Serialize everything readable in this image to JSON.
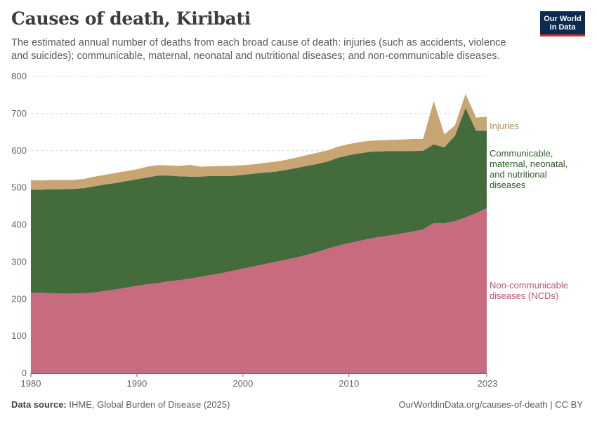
{
  "header": {
    "title": "Causes of death, Kiribati",
    "subtitle": "The estimated annual number of deaths from each broad cause of death: injuries (such as accidents, violence and suicides); communicable, maternal, neonatal and nutritional diseases; and non-communicable diseases.",
    "logo_line1": "Our World",
    "logo_line2": "in Data"
  },
  "footer": {
    "source_label": "Data source:",
    "source_text": "IHME, Global Burden of Disease (2025)",
    "url_text": "OurWorldinData.org/causes-of-death | CC BY"
  },
  "colors": {
    "ncd": "#c96b7e",
    "communicable": "#436b3c",
    "injuries": "#c9a574",
    "ncd_label": "#c0546b",
    "communicable_label": "#2f5c28",
    "injuries_label": "#b78d55",
    "grid": "#dddddd",
    "axis": "#666666"
  },
  "chart_data": {
    "type": "area",
    "stacked": true,
    "title": "Causes of death, Kiribati",
    "xlabel": "",
    "ylabel": "",
    "xlim": [
      1980,
      2023
    ],
    "ylim": [
      0,
      800
    ],
    "x_ticks": [
      "1980",
      "1990",
      "2000",
      "2010",
      "2023"
    ],
    "y_ticks": [
      "0",
      "100",
      "200",
      "300",
      "400",
      "500",
      "600",
      "700",
      "800"
    ],
    "x": [
      1980,
      1981,
      1982,
      1983,
      1984,
      1985,
      1986,
      1987,
      1988,
      1989,
      1990,
      1991,
      1992,
      1993,
      1994,
      1995,
      1996,
      1997,
      1998,
      1999,
      2000,
      2001,
      2002,
      2003,
      2004,
      2005,
      2006,
      2007,
      2008,
      2009,
      2010,
      2011,
      2012,
      2013,
      2014,
      2015,
      2016,
      2017,
      2018,
      2019,
      2020,
      2021,
      2022,
      2023
    ],
    "series": [
      {
        "name": "Non-communicable diseases (NCDs)",
        "label_lines": [
          "Non-communicable",
          "diseases (NCDs)"
        ],
        "values": [
          217,
          217,
          216,
          215,
          215,
          216,
          218,
          222,
          226,
          231,
          236,
          240,
          243,
          248,
          251,
          255,
          260,
          265,
          270,
          276,
          282,
          288,
          294,
          300,
          306,
          312,
          319,
          327,
          336,
          344,
          351,
          357,
          363,
          368,
          372,
          377,
          382,
          388,
          405,
          404,
          410,
          420,
          432,
          445
        ]
      },
      {
        "name": "Communicable, maternal, neonatal, and nutritional diseases",
        "label_lines": [
          "Communicable,",
          "maternal, neonatal,",
          "and nutritional",
          "diseases"
        ],
        "values": [
          278,
          278,
          280,
          281,
          282,
          283,
          286,
          287,
          287,
          287,
          287,
          288,
          290,
          285,
          280,
          275,
          270,
          267,
          262,
          256,
          253,
          250,
          247,
          243,
          242,
          241,
          240,
          237,
          235,
          237,
          237,
          236,
          234,
          230,
          227,
          222,
          217,
          212,
          212,
          205,
          230,
          295,
          222,
          209
        ]
      },
      {
        "name": "Injuries",
        "label_lines": [
          "Injuries"
        ],
        "values": [
          25,
          25,
          25,
          25,
          24,
          25,
          26,
          26,
          27,
          27,
          27,
          29,
          28,
          27,
          28,
          32,
          27,
          26,
          27,
          27,
          26,
          25,
          26,
          27,
          27,
          28,
          29,
          30,
          30,
          30,
          30,
          30,
          30,
          30,
          30,
          31,
          33,
          32,
          117,
          35,
          28,
          38,
          35,
          38
        ]
      }
    ]
  }
}
